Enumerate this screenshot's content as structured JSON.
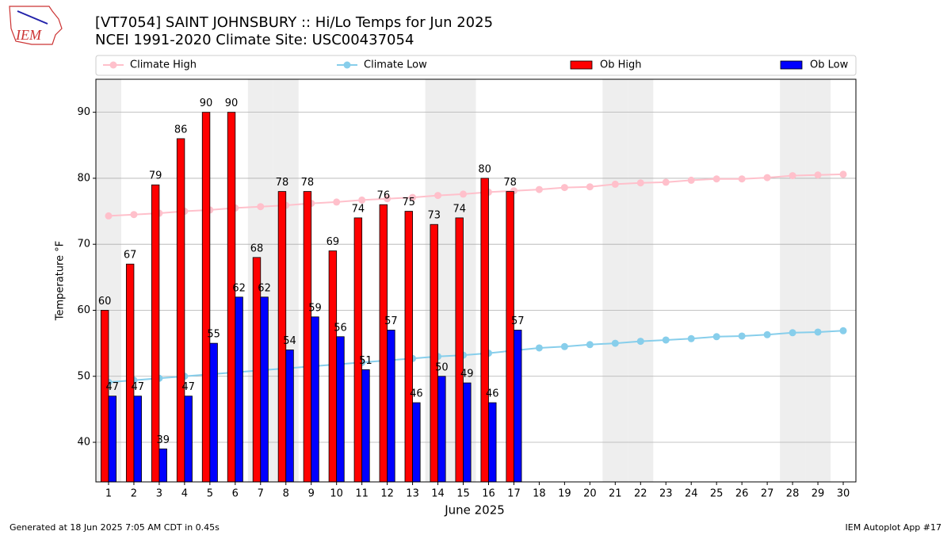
{
  "chart_data": {
    "type": "bar",
    "title": "[VT7054] SAINT JOHNSBURY :: Hi/Lo Temps for Jun 2025",
    "subtitle": "NCEI 1991-2020 Climate Site: USC00437054",
    "logo_text": "IEM",
    "xlabel": "June 2025",
    "ylabel": "Temperature °F",
    "footer_left": "Generated at 18 Jun 2025 7:05 AM CDT in 0.45s",
    "footer_right": "IEM Autoplot App #17",
    "x": [
      1,
      2,
      3,
      4,
      5,
      6,
      7,
      8,
      9,
      10,
      11,
      12,
      13,
      14,
      15,
      16,
      17,
      18,
      19,
      20,
      21,
      22,
      23,
      24,
      25,
      26,
      27,
      28,
      29,
      30
    ],
    "xlim": [
      0.5,
      30.5
    ],
    "xticks": [
      1,
      2,
      3,
      4,
      5,
      6,
      7,
      8,
      9,
      10,
      11,
      12,
      13,
      14,
      15,
      16,
      17,
      18,
      19,
      20,
      21,
      22,
      23,
      24,
      25,
      26,
      27,
      28,
      29,
      30
    ],
    "ylim": [
      34,
      95
    ],
    "yticks": [
      40,
      50,
      60,
      70,
      80,
      90
    ],
    "grid": true,
    "shaded_days": [
      1,
      7,
      8,
      14,
      15,
      21,
      22,
      28,
      29
    ],
    "legend": "above",
    "series": [
      {
        "name": "Climate High",
        "type": "line",
        "color": "#ffc0cb",
        "values": [
          74.3,
          74.5,
          74.7,
          75.0,
          75.2,
          75.5,
          75.7,
          75.9,
          76.2,
          76.4,
          76.7,
          76.9,
          77.1,
          77.4,
          77.6,
          77.9,
          78.1,
          78.3,
          78.6,
          78.7,
          79.1,
          79.3,
          79.4,
          79.7,
          79.9,
          79.9,
          80.1,
          80.4,
          80.5,
          80.6
        ]
      },
      {
        "name": "Climate Low",
        "type": "line",
        "color": "#87ceeb",
        "values": [
          49.1,
          49.4,
          49.7,
          50.0,
          50.3,
          50.6,
          50.9,
          51.2,
          51.5,
          51.8,
          52.1,
          52.4,
          52.7,
          53.0,
          53.2,
          53.5,
          53.9,
          54.3,
          54.5,
          54.8,
          55.0,
          55.3,
          55.5,
          55.7,
          56.0,
          56.1,
          56.3,
          56.6,
          56.7,
          56.9
        ]
      },
      {
        "name": "Ob High",
        "type": "bar",
        "color": "#ff0000",
        "values": [
          60,
          67,
          79,
          86,
          90,
          90,
          68,
          78,
          78,
          69,
          74,
          76,
          75,
          73,
          74,
          80,
          78,
          null,
          null,
          null,
          null,
          null,
          null,
          null,
          null,
          null,
          null,
          null,
          null,
          null
        ]
      },
      {
        "name": "Ob Low",
        "type": "bar",
        "color": "#0000ff",
        "values": [
          47,
          47,
          39,
          47,
          55,
          62,
          62,
          54,
          59,
          56,
          51,
          57,
          46,
          50,
          49,
          46,
          57,
          null,
          null,
          null,
          null,
          null,
          null,
          null,
          null,
          null,
          null,
          null,
          null,
          null
        ]
      }
    ]
  }
}
